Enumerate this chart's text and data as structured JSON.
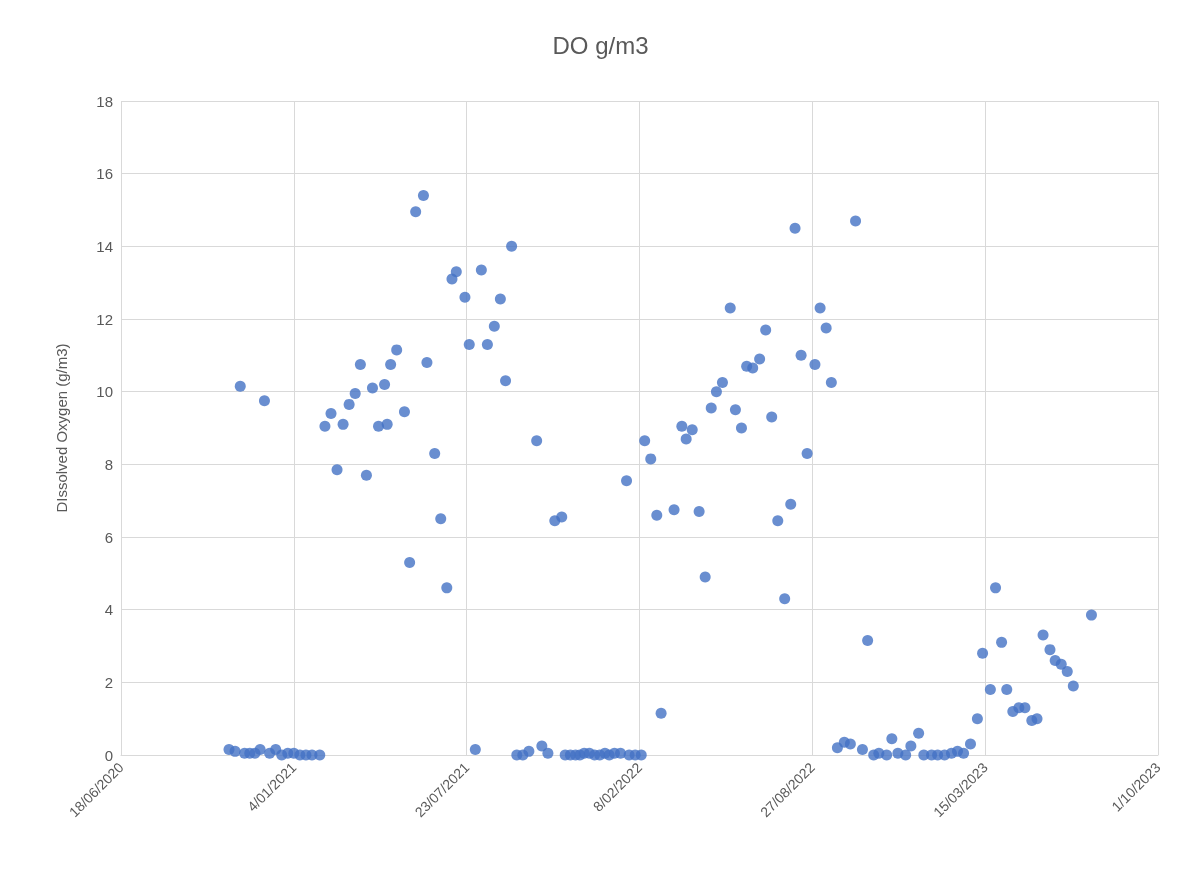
{
  "chart_data": {
    "type": "scatter",
    "title": "DO g/m3",
    "ylabel": "DIssolved Oxygen (g/m3)",
    "marker": "circle",
    "grid": true,
    "xlim": [
      "2020-06-18",
      "2023-10-01"
    ],
    "xticks": [
      {
        "value": "2020-06-18",
        "label": "18/06/2020"
      },
      {
        "value": "2021-01-04",
        "label": "4/01/2021"
      },
      {
        "value": "2021-07-23",
        "label": "23/07/2021"
      },
      {
        "value": "2022-02-08",
        "label": "8/02/2022"
      },
      {
        "value": "2022-08-27",
        "label": "27/08/2022"
      },
      {
        "value": "2023-03-15",
        "label": "15/03/2023"
      },
      {
        "value": "2023-10-01",
        "label": "1/10/2023"
      }
    ],
    "ylim": [
      0,
      18
    ],
    "yticks": [
      0,
      2,
      4,
      6,
      8,
      10,
      12,
      14,
      16,
      18
    ],
    "series": [
      {
        "color": "#4472c4",
        "x": [
          "2020-10-21",
          "2020-10-28",
          "2020-11-03",
          "2020-11-08",
          "2020-11-14",
          "2020-11-20",
          "2020-11-26",
          "2020-12-01",
          "2020-12-07",
          "2020-12-14",
          "2020-12-21",
          "2020-12-28",
          "2021-01-04",
          "2021-01-11",
          "2021-01-18",
          "2021-01-25",
          "2021-02-03",
          "2021-02-09",
          "2021-02-16",
          "2021-02-23",
          "2021-03-02",
          "2021-03-09",
          "2021-03-16",
          "2021-03-22",
          "2021-03-29",
          "2021-04-05",
          "2021-04-12",
          "2021-04-19",
          "2021-04-22",
          "2021-04-26",
          "2021-05-03",
          "2021-05-12",
          "2021-05-18",
          "2021-05-25",
          "2021-06-03",
          "2021-06-07",
          "2021-06-16",
          "2021-06-23",
          "2021-06-30",
          "2021-07-06",
          "2021-07-11",
          "2021-07-21",
          "2021-07-26",
          "2021-08-02",
          "2021-08-09",
          "2021-08-16",
          "2021-08-24",
          "2021-08-31",
          "2021-09-06",
          "2021-09-13",
          "2021-09-19",
          "2021-09-26",
          "2021-10-03",
          "2021-10-12",
          "2021-10-18",
          "2021-10-25",
          "2021-11-02",
          "2021-11-10",
          "2021-11-14",
          "2021-11-20",
          "2021-11-26",
          "2021-12-01",
          "2021-12-06",
          "2021-12-12",
          "2021-12-18",
          "2021-12-24",
          "2021-12-30",
          "2022-01-04",
          "2022-01-10",
          "2022-01-17",
          "2022-01-24",
          "2022-01-27",
          "2022-02-03",
          "2022-02-10",
          "2022-02-14",
          "2022-02-21",
          "2022-02-28",
          "2022-03-05",
          "2022-03-20",
          "2022-03-29",
          "2022-04-03",
          "2022-04-10",
          "2022-04-18",
          "2022-04-25",
          "2022-05-02",
          "2022-05-08",
          "2022-05-15",
          "2022-05-24",
          "2022-05-30",
          "2022-06-06",
          "2022-06-12",
          "2022-06-19",
          "2022-06-27",
          "2022-07-04",
          "2022-07-11",
          "2022-07-18",
          "2022-07-26",
          "2022-08-02",
          "2022-08-07",
          "2022-08-14",
          "2022-08-21",
          "2022-08-30",
          "2022-09-05",
          "2022-09-12",
          "2022-09-18",
          "2022-09-25",
          "2022-10-03",
          "2022-10-10",
          "2022-10-16",
          "2022-10-24",
          "2022-10-30",
          "2022-11-06",
          "2022-11-12",
          "2022-11-21",
          "2022-11-27",
          "2022-12-04",
          "2022-12-13",
          "2022-12-19",
          "2022-12-28",
          "2023-01-03",
          "2023-01-12",
          "2023-01-19",
          "2023-01-27",
          "2023-02-04",
          "2023-02-11",
          "2023-02-18",
          "2023-02-26",
          "2023-03-06",
          "2023-03-12",
          "2023-03-21",
          "2023-03-27",
          "2023-04-03",
          "2023-04-09",
          "2023-04-16",
          "2023-04-23",
          "2023-04-30",
          "2023-05-08",
          "2023-05-14",
          "2023-05-21",
          "2023-05-29",
          "2023-06-04",
          "2023-06-11",
          "2023-06-18",
          "2023-06-25",
          "2023-07-16"
        ],
        "values": [
          0.15,
          0.1,
          10.15,
          0.05,
          0.05,
          0.05,
          0.15,
          9.75,
          0.05,
          0.15,
          0,
          0.05,
          0.05,
          0,
          0,
          0,
          0,
          9.05,
          9.4,
          7.85,
          9.1,
          9.65,
          9.95,
          10.75,
          7.7,
          10.1,
          9.05,
          10.2,
          9.1,
          10.75,
          11.15,
          9.45,
          5.3,
          14.95,
          15.4,
          10.8,
          8.3,
          6.5,
          4.6,
          13.1,
          13.3,
          12.6,
          11.3,
          0.15,
          13.35,
          11.3,
          11.8,
          12.55,
          10.3,
          14,
          0,
          0,
          0.1,
          8.65,
          0.25,
          0.05,
          6.45,
          6.55,
          0,
          0,
          0,
          0,
          0.05,
          0.05,
          0,
          0,
          0.05,
          0,
          0.05,
          0.05,
          7.55,
          0,
          0,
          0,
          8.65,
          8.15,
          6.6,
          1.15,
          6.75,
          9.05,
          8.7,
          8.95,
          6.7,
          4.9,
          9.55,
          10,
          10.25,
          12.3,
          9.5,
          9,
          10.7,
          10.65,
          10.9,
          11.7,
          9.3,
          6.45,
          4.3,
          6.9,
          14.5,
          11,
          8.3,
          10.75,
          12.3,
          11.75,
          10.25,
          0.2,
          0.35,
          0.3,
          14.7,
          0.15,
          3.15,
          0,
          0.05,
          0,
          0.45,
          0.05,
          0,
          0.25,
          0.6,
          0,
          0,
          0,
          0,
          0.05,
          0.1,
          0.05,
          0.3,
          1,
          2.8,
          1.8,
          4.6,
          3.1,
          1.8,
          1.2,
          1.3,
          1.3,
          0.95,
          1,
          3.3,
          2.9,
          2.6,
          2.5,
          2.3,
          1.9,
          3.85
        ]
      }
    ]
  }
}
